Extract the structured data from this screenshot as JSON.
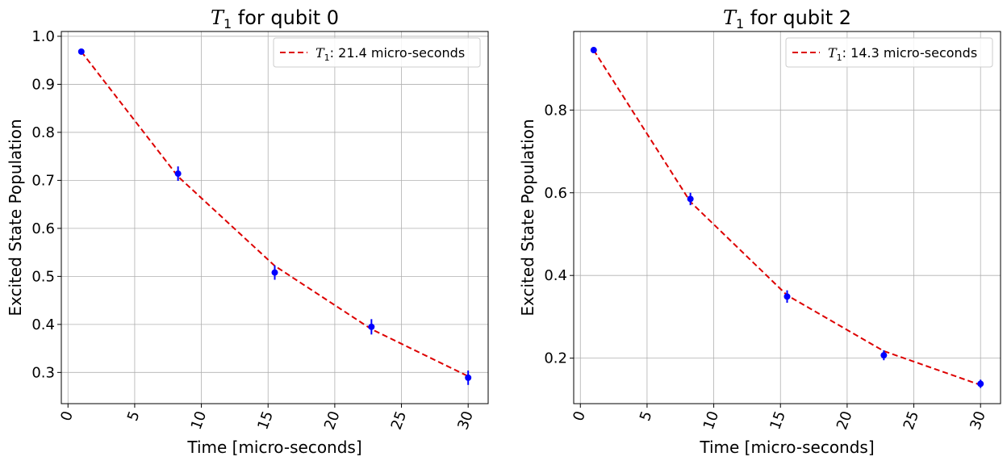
{
  "chart_data": [
    {
      "type": "scatter",
      "title_symbol": "T",
      "title_subscript": "1",
      "title_text": " for qubit 0",
      "xlabel": "Time [micro-seconds]",
      "ylabel": "Excited State Population",
      "xlim": [
        -0.5,
        31.5
      ],
      "ylim": [
        0.235,
        1.01
      ],
      "xticks": [
        0,
        5,
        10,
        15,
        20,
        25,
        30
      ],
      "yticks": [
        0.3,
        0.4,
        0.5,
        0.6,
        0.7,
        0.8,
        0.9,
        1.0
      ],
      "ytick_labels": [
        "0.3",
        "0.4",
        "0.5",
        "0.6",
        "0.7",
        "0.8",
        "0.9",
        "1.0"
      ],
      "grid": true,
      "legend_position": "top-right",
      "series": [
        {
          "kind": "errorbar",
          "color": "#0000ff",
          "x": [
            1.0,
            8.25,
            15.5,
            22.75,
            30.0
          ],
          "y": [
            0.968,
            0.714,
            0.508,
            0.395,
            0.289
          ],
          "yerr": [
            0.004,
            0.015,
            0.015,
            0.016,
            0.015
          ]
        },
        {
          "kind": "fit",
          "color": "#dd0000",
          "dashed": true,
          "legend_symbol": "T",
          "legend_subscript": "1",
          "legend_text": ": 21.4 micro-seconds",
          "x": [
            1.0,
            8.25,
            15.5,
            22.75,
            30.0
          ],
          "y": [
            0.968,
            0.708,
            0.522,
            0.39,
            0.292
          ]
        }
      ]
    },
    {
      "type": "scatter",
      "title_symbol": "T",
      "title_subscript": "1",
      "title_text": " for qubit 2",
      "xlabel": "Time [micro-seconds]",
      "ylabel": "Excited State Population",
      "xlim": [
        -0.5,
        31.5
      ],
      "ylim": [
        0.09,
        0.99
      ],
      "xticks": [
        0,
        5,
        10,
        15,
        20,
        25,
        30
      ],
      "yticks": [
        0.2,
        0.4,
        0.6,
        0.8
      ],
      "ytick_labels": [
        "0.2",
        "0.4",
        "0.6",
        "0.8"
      ],
      "grid": true,
      "legend_position": "top-right",
      "series": [
        {
          "kind": "errorbar",
          "color": "#0000ff",
          "x": [
            1.0,
            8.25,
            15.5,
            22.75,
            30.0
          ],
          "y": [
            0.945,
            0.585,
            0.349,
            0.207,
            0.138
          ],
          "yerr": [
            0.005,
            0.015,
            0.015,
            0.012,
            0.01
          ]
        },
        {
          "kind": "fit",
          "color": "#dd0000",
          "dashed": true,
          "legend_symbol": "T",
          "legend_subscript": "1",
          "legend_text": ": 14.3 micro-seconds",
          "x": [
            1.0,
            8.25,
            15.5,
            22.75,
            30.0
          ],
          "y": [
            0.945,
            0.578,
            0.352,
            0.217,
            0.135
          ]
        }
      ]
    }
  ]
}
